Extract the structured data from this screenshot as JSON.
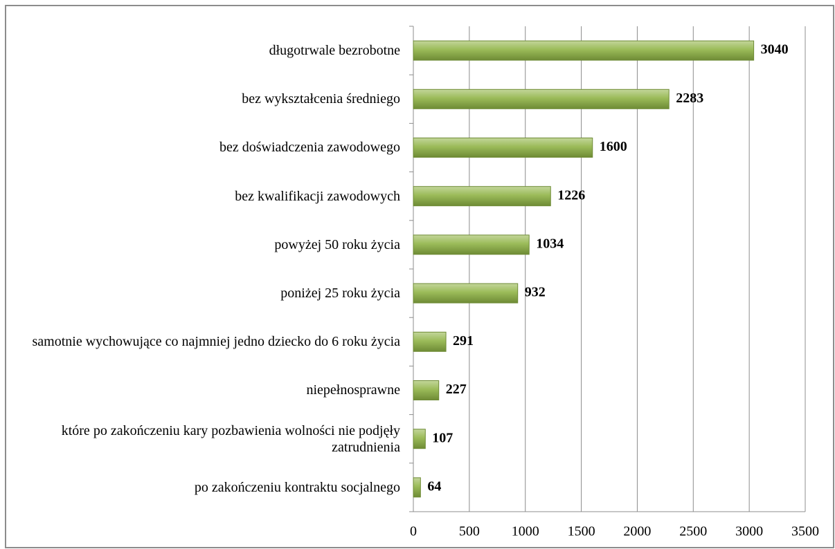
{
  "chart_data": {
    "type": "bar",
    "orientation": "horizontal",
    "categories": [
      "długotrwale bezrobotne",
      "bez wykształcenia średniego",
      "bez doświadczenia zawodowego",
      "bez kwalifikacji zawodowych",
      "powyżej 50 roku życia",
      "poniżej 25 roku życia",
      "samotnie wychowujące co najmniej jedno dziecko do 6 roku życia",
      "niepełnosprawne",
      "które po zakończeniu kary pozbawienia wolności nie podjęły zatrudnienia",
      "po zakończeniu kontraktu socjalnego"
    ],
    "values": [
      3040,
      2283,
      1600,
      1226,
      1034,
      932,
      291,
      227,
      107,
      64
    ],
    "color": "#9bbb59",
    "xlim": [
      0,
      3500
    ],
    "xticks": [
      0,
      500,
      1000,
      1500,
      2000,
      2500,
      3000,
      3500
    ],
    "grid": true
  }
}
